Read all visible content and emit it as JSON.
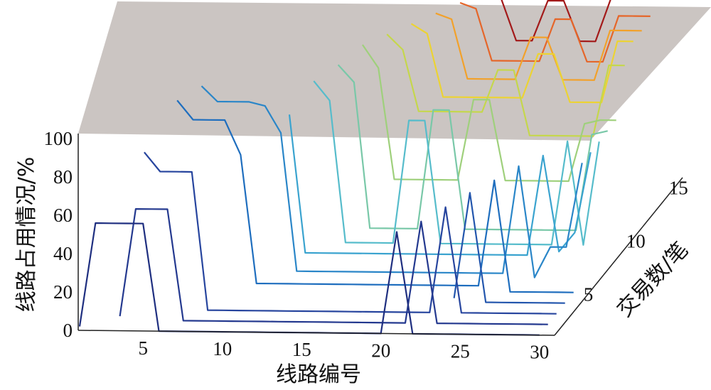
{
  "chart_data": {
    "type": "line",
    "title": "",
    "xlabel": "线路编号",
    "ylabel": "线路占用情况/%",
    "zlabel": "交易数/笔",
    "x_ticks": [
      "5",
      "10",
      "15",
      "20",
      "25",
      "30"
    ],
    "y_ticks": [
      "0",
      "20",
      "40",
      "60",
      "80",
      "100"
    ],
    "z_ticks": [
      "5",
      "10",
      "15"
    ],
    "xlim": [
      1,
      30
    ],
    "ylim": [
      0,
      100
    ],
    "zlim": [
      1,
      15
    ],
    "x": [
      1,
      2,
      3,
      4,
      5,
      6,
      7,
      8,
      9,
      10,
      11,
      12,
      13,
      14,
      15,
      16,
      17,
      18,
      19,
      20,
      21,
      22,
      23,
      24,
      25,
      26,
      27,
      28,
      29,
      30
    ],
    "series": [
      {
        "z": 1,
        "color": "#1f2f80",
        "values": [
          2,
          56,
          56,
          56,
          56,
          0,
          0,
          0,
          0,
          0,
          0,
          0,
          0,
          0,
          0,
          0,
          0,
          0,
          0,
          0,
          53,
          0,
          0,
          0,
          0,
          0,
          0,
          0,
          0,
          0
        ]
      },
      {
        "z": 2,
        "color": "#24398f",
        "values": [
          null,
          null,
          2,
          58,
          58,
          58,
          0,
          0,
          0,
          0,
          0,
          0,
          0,
          0,
          0,
          0,
          0,
          0,
          0,
          0,
          0,
          53,
          0,
          0,
          0,
          0,
          0,
          0,
          0,
          0
        ]
      },
      {
        "z": 3,
        "color": "#27459e",
        "values": [
          null,
          null,
          null,
          82,
          72,
          72,
          72,
          0,
          0,
          0,
          0,
          0,
          0,
          0,
          0,
          0,
          0,
          0,
          0,
          0,
          0,
          0,
          55,
          0,
          0,
          0,
          0,
          0,
          0,
          0
        ]
      },
      {
        "z": 4,
        "color": "#2356ad",
        "values": [
          null,
          null,
          null,
          null,
          null,
          null,
          null,
          null,
          null,
          null,
          null,
          null,
          null,
          null,
          null,
          null,
          null,
          null,
          null,
          null,
          null,
          null,
          2,
          57,
          0,
          0,
          0,
          0,
          0,
          0
        ]
      },
      {
        "z": 5,
        "color": "#1f6ebe",
        "values": [
          null,
          null,
          null,
          null,
          98,
          88,
          88,
          88,
          70,
          3,
          3,
          3,
          3,
          3,
          3,
          3,
          3,
          3,
          3,
          3,
          3,
          3,
          3,
          3,
          58,
          0,
          0,
          0,
          0,
          0
        ]
      },
      {
        "z": 6,
        "color": "#2a86c8",
        "values": [
          null,
          null,
          null,
          null,
          null,
          100,
          92,
          92,
          92,
          90,
          76,
          4,
          4,
          4,
          4,
          4,
          4,
          4,
          4,
          4,
          4,
          4,
          4,
          4,
          4,
          60,
          2,
          18,
          18,
          62
        ]
      },
      {
        "z": 7,
        "color": "#3aa3cf",
        "values": [
          null,
          null,
          null,
          null,
          null,
          null,
          null,
          null,
          null,
          null,
          80,
          8,
          8,
          8,
          8,
          8,
          8,
          8,
          8,
          8,
          8,
          8,
          8,
          8,
          8,
          8,
          60,
          10,
          20,
          62
        ]
      },
      {
        "z": 8,
        "color": "#56bccb",
        "values": [
          null,
          null,
          null,
          null,
          null,
          null,
          null,
          null,
          null,
          null,
          null,
          92,
          82,
          8,
          8,
          8,
          8,
          72,
          72,
          8,
          8,
          8,
          8,
          8,
          8,
          8,
          8,
          62,
          8,
          62
        ]
      },
      {
        "z": 9,
        "color": "#79c8a8",
        "values": [
          null,
          null,
          null,
          null,
          null,
          null,
          null,
          null,
          null,
          null,
          null,
          null,
          95,
          86,
          10,
          10,
          10,
          10,
          72,
          72,
          10,
          10,
          10,
          10,
          10,
          10,
          10,
          10,
          60,
          62
        ]
      },
      {
        "z": 10,
        "color": "#9fd07c",
        "values": [
          null,
          null,
          null,
          null,
          null,
          null,
          null,
          null,
          null,
          null,
          null,
          null,
          null,
          100,
          88,
          30,
          30,
          30,
          30,
          30,
          72,
          72,
          30,
          30,
          30,
          30,
          30,
          60,
          62,
          62
        ]
      },
      {
        "z": 11,
        "color": "#c5d74c",
        "values": [
          null,
          null,
          null,
          null,
          null,
          null,
          null,
          null,
          null,
          null,
          null,
          null,
          null,
          null,
          100,
          92,
          60,
          60,
          60,
          60,
          60,
          82,
          82,
          48,
          48,
          48,
          48,
          48,
          85,
          85
        ]
      },
      {
        "z": 12,
        "color": "#ecd333",
        "values": [
          null,
          null,
          null,
          null,
          null,
          null,
          null,
          null,
          null,
          null,
          null,
          null,
          null,
          null,
          null,
          100,
          95,
          62,
          62,
          62,
          62,
          62,
          62,
          85,
          85,
          60,
          60,
          60,
          92,
          92
        ]
      },
      {
        "z": 13,
        "color": "#f2a12a",
        "values": [
          null,
          null,
          null,
          null,
          null,
          null,
          null,
          null,
          null,
          null,
          null,
          null,
          null,
          null,
          null,
          null,
          100,
          97,
          66,
          66,
          66,
          66,
          88,
          88,
          66,
          66,
          66,
          92,
          92,
          92
        ]
      },
      {
        "z": 14,
        "color": "#e5662a",
        "values": [
          null,
          null,
          null,
          null,
          null,
          null,
          null,
          null,
          null,
          null,
          null,
          null,
          null,
          null,
          null,
          null,
          null,
          100,
          97,
          70,
          70,
          70,
          70,
          92,
          92,
          70,
          70,
          94,
          94,
          94
        ]
      },
      {
        "z": 15,
        "color": "#a31a1a",
        "values": [
          null,
          null,
          null,
          null,
          null,
          null,
          null,
          null,
          null,
          null,
          null,
          null,
          null,
          null,
          null,
          null,
          null,
          null,
          100,
          98,
          75,
          75,
          96,
          96,
          75,
          75,
          98,
          98,
          98,
          98
        ]
      }
    ],
    "plane": {
      "value": 100,
      "color": "#b8b0ab",
      "opacity": 0.7
    },
    "grid": false,
    "legend": "none"
  }
}
